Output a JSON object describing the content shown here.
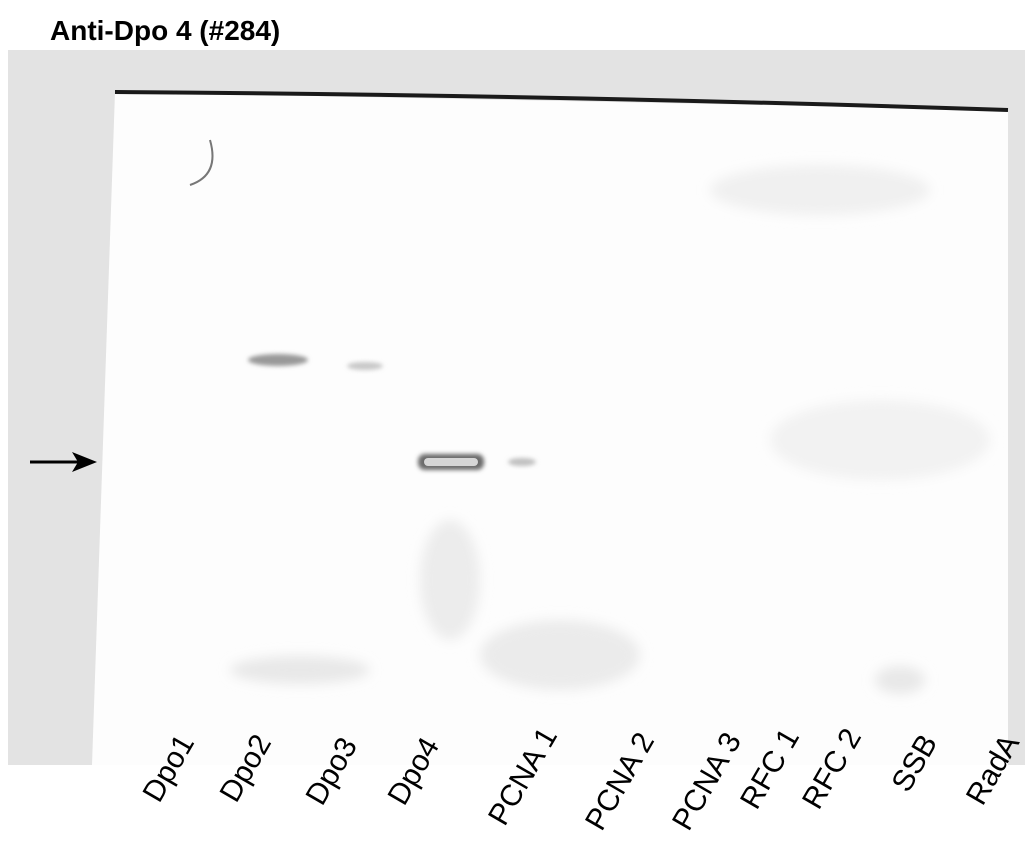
{
  "header": {
    "title": "Anti-Dpo 4 (#284)"
  },
  "lanes": [
    {
      "label": "Dpo1"
    },
    {
      "label": "Dpo2"
    },
    {
      "label": "Dpo3"
    },
    {
      "label": "Dpo4"
    },
    {
      "label": "PCNA 1"
    },
    {
      "label": "PCNA 2"
    },
    {
      "label": "PCNA 3"
    },
    {
      "label": "RFC 1"
    },
    {
      "label": "RFC 2"
    },
    {
      "label": "SSB"
    },
    {
      "label": "RadA"
    }
  ]
}
